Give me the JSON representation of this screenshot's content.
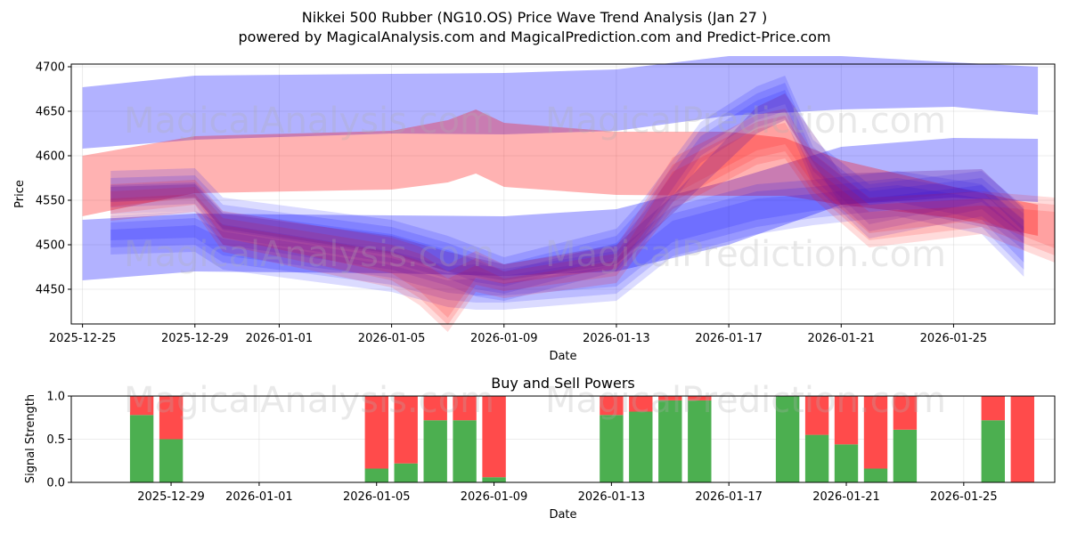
{
  "chart_data": [
    {
      "type": "area",
      "title": "Nikkei 500 Rubber (NG10.OS) Price Wave Trend Analysis (Jan 27 )",
      "subtitle": "powered by MagicalAnalysis.com and MagicalPrediction.com and Predict-Price.com",
      "xlabel": "Date",
      "ylabel": "Price",
      "xlim": [
        "2025-12-24.6",
        "2026-01-28.6"
      ],
      "ylim": [
        4411,
        4703
      ],
      "x_ticks": [
        "2025-12-25",
        "2025-12-29",
        "2026-01-01",
        "2026-01-05",
        "2026-01-09",
        "2026-01-13",
        "2026-01-17",
        "2026-01-21",
        "2026-01-25"
      ],
      "y_ticks": [
        4450,
        4500,
        4550,
        4600,
        4650,
        4700
      ],
      "grid": true,
      "watermarks": [
        "MagicalAnalysis.com",
        "MagicalPrediction.com"
      ],
      "series": [
        {
          "name": "upper-channel",
          "color": "#0000ff",
          "x": [
            "2025-12-25",
            "2025-12-29",
            "2026-01-05",
            "2026-01-09",
            "2026-01-13",
            "2026-01-17",
            "2026-01-21",
            "2026-01-25",
            "2026-01-28"
          ],
          "upper": [
            4677,
            4690,
            4692,
            4693,
            4697,
            4712,
            4712,
            4705,
            4700
          ],
          "lower": [
            4608,
            4618,
            4625,
            4624,
            4628,
            4645,
            4652,
            4655,
            4646
          ]
        },
        {
          "name": "lower-channel",
          "color": "#0000ff",
          "x": [
            "2025-12-25",
            "2025-12-29",
            "2026-01-05",
            "2026-01-09",
            "2026-01-13",
            "2026-01-17",
            "2026-01-21",
            "2026-01-25",
            "2026-01-28"
          ],
          "upper": [
            4528,
            4535,
            4533,
            4532,
            4540,
            4572,
            4610,
            4620,
            4619
          ],
          "lower": [
            4460,
            4470,
            4468,
            4465,
            4470,
            4500,
            4545,
            4553,
            4548
          ]
        },
        {
          "name": "red-channel",
          "color": "#ff0000",
          "x": [
            "2025-12-25",
            "2025-12-29",
            "2026-01-05",
            "2026-01-07",
            "2026-01-08",
            "2026-01-09",
            "2026-01-13",
            "2026-01-17",
            "2026-01-19",
            "2026-01-21",
            "2026-01-25",
            "2026-01-28"
          ],
          "upper": [
            4600,
            4622,
            4628,
            4640,
            4652,
            4637,
            4627,
            4627,
            4620,
            4595,
            4565,
            4545
          ],
          "lower": [
            4532,
            4558,
            4562,
            4570,
            4580,
            4565,
            4556,
            4555,
            4555,
            4545,
            4530,
            4510
          ]
        },
        {
          "name": "wave-upper-band",
          "color": "#0000ff",
          "x": [
            "2025-12-26",
            "2025-12-29",
            "2025-12-30",
            "2026-01-05",
            "2026-01-07",
            "2026-01-08",
            "2026-01-09",
            "2026-01-13",
            "2026-01-14",
            "2026-01-16",
            "2026-01-18",
            "2026-01-19",
            "2026-01-20",
            "2026-01-22",
            "2026-01-26",
            "2026-01-27.5"
          ],
          "upper": [
            4575,
            4578,
            4545,
            4520,
            4502,
            4490,
            4478,
            4510,
            4545,
            4630,
            4670,
            4682,
            4610,
            4560,
            4575,
            4535
          ],
          "lower": [
            4542,
            4546,
            4508,
            4480,
            4462,
            4450,
            4445,
            4478,
            4510,
            4600,
            4640,
            4650,
            4575,
            4515,
            4540,
            4502
          ]
        },
        {
          "name": "wave-lower-band",
          "color": "#0000ff",
          "x": [
            "2025-12-26",
            "2025-12-29",
            "2025-12-30",
            "2026-01-05",
            "2026-01-07",
            "2026-01-08",
            "2026-01-09",
            "2026-01-13",
            "2026-01-15",
            "2026-01-18",
            "2026-01-20",
            "2026-01-23",
            "2026-01-26",
            "2026-01-27.5"
          ],
          "upper": [
            4525,
            4530,
            4515,
            4485,
            4468,
            4470,
            4465,
            4485,
            4535,
            4560,
            4565,
            4575,
            4560,
            4520
          ],
          "lower": [
            4497,
            4500,
            4480,
            4455,
            4438,
            4435,
            4435,
            4445,
            4495,
            4520,
            4530,
            4540,
            4520,
            4472
          ]
        },
        {
          "name": "wave-red-band",
          "color": "#ff0000",
          "x": [
            "2025-12-26",
            "2025-12-29",
            "2025-12-30",
            "2026-01-05",
            "2026-01-06",
            "2026-01-07",
            "2026-01-08",
            "2026-01-09",
            "2026-01-13",
            "2026-01-15",
            "2026-01-18",
            "2026-01-19",
            "2026-01-20",
            "2026-01-22",
            "2026-01-26",
            "2026-01-28.6"
          ],
          "upper": [
            4560,
            4565,
            4530,
            4500,
            4490,
            4470,
            4485,
            4470,
            4490,
            4590,
            4638,
            4645,
            4595,
            4545,
            4552,
            4545
          ],
          "lower": [
            4535,
            4545,
            4500,
            4460,
            4440,
            4410,
            4455,
            4448,
            4465,
            4548,
            4598,
            4605,
            4560,
            4505,
            4520,
            4488
          ]
        },
        {
          "name": "purple-blend-band",
          "color": "#6a1b9a",
          "x": [
            "2025-12-26",
            "2025-12-29",
            "2025-12-30",
            "2026-01-05",
            "2026-01-07",
            "2026-01-09",
            "2026-01-13",
            "2026-01-15",
            "2026-01-18",
            "2026-01-19",
            "2026-01-21",
            "2026-01-26",
            "2026-01-27.5"
          ],
          "upper": [
            4565,
            4568,
            4535,
            4510,
            4492,
            4478,
            4500,
            4555,
            4655,
            4670,
            4580,
            4585,
            4540
          ],
          "lower": [
            4548,
            4552,
            4518,
            4490,
            4470,
            4460,
            4478,
            4535,
            4625,
            4640,
            4545,
            4560,
            4515
          ]
        }
      ]
    },
    {
      "type": "bar",
      "title": "Buy and Sell Powers",
      "xlabel": "Date",
      "ylabel": "Signal Strength",
      "ylim": [
        0,
        1
      ],
      "y_ticks": [
        0.0,
        0.5,
        1.0
      ],
      "y_tick_labels": [
        "0.0",
        "0.5",
        "1.0"
      ],
      "x_ticks": [
        "2025-12-29",
        "2026-01-01",
        "2026-01-05",
        "2026-01-09",
        "2026-01-13",
        "2026-01-17",
        "2026-01-21",
        "2026-01-25"
      ],
      "xlim": [
        "2025-12-25.6",
        "2026-01-28.1"
      ],
      "colors": {
        "buy": "#4caf50",
        "sell": "#ff4b4b"
      },
      "categories": [
        "2025-12-28",
        "2025-12-29",
        "2026-01-05",
        "2026-01-06",
        "2026-01-07",
        "2026-01-08",
        "2026-01-09",
        "2026-01-13",
        "2026-01-14",
        "2026-01-15",
        "2026-01-16",
        "2026-01-19",
        "2026-01-20",
        "2026-01-21",
        "2026-01-22",
        "2026-01-23",
        "2026-01-26",
        "2026-01-27"
      ],
      "series": [
        {
          "name": "Buy",
          "values": [
            0.78,
            0.5,
            0.16,
            0.22,
            0.72,
            0.72,
            0.06,
            0.78,
            0.82,
            0.95,
            0.95,
            1.0,
            0.55,
            0.44,
            0.16,
            0.61,
            0.72,
            0.0
          ]
        },
        {
          "name": "Sell",
          "values": [
            0.22,
            0.5,
            0.84,
            0.78,
            0.28,
            0.28,
            0.94,
            0.22,
            0.18,
            0.05,
            0.05,
            0.0,
            0.45,
            0.56,
            0.84,
            0.39,
            0.28,
            1.0
          ]
        }
      ]
    }
  ]
}
